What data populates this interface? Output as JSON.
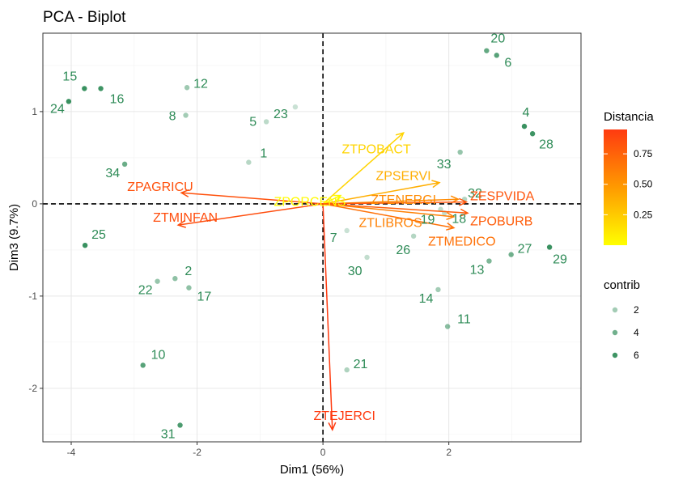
{
  "chart_data": {
    "type": "scatter",
    "title": "PCA - Biplot",
    "xlabel": "Dim1 (56%)",
    "ylabel": "Dim3 (9.7%)",
    "xlim": [
      -4.45,
      4.1
    ],
    "ylim": [
      -2.58,
      1.85
    ],
    "xticks": [
      -4,
      -2,
      0,
      2
    ],
    "yticks": [
      -2,
      -1,
      0,
      1
    ],
    "grid": true,
    "point_color": "#2e8b57",
    "individuals": [
      {
        "label": "1",
        "x": -1.18,
        "y": 0.45,
        "contrib": 1.2
      },
      {
        "label": "2",
        "x": -2.35,
        "y": -0.81,
        "contrib": 2.8
      },
      {
        "label": "4",
        "x": 3.2,
        "y": 0.84,
        "contrib": 6.2
      },
      {
        "label": "5",
        "x": -0.9,
        "y": 0.89,
        "contrib": 1.0
      },
      {
        "label": "6",
        "x": 2.76,
        "y": 1.61,
        "contrib": 5.0
      },
      {
        "label": "7",
        "x": 0.38,
        "y": -0.29,
        "contrib": 0.5
      },
      {
        "label": "8",
        "x": -2.18,
        "y": 0.96,
        "contrib": 2.0
      },
      {
        "label": "10",
        "x": -2.86,
        "y": -1.75,
        "contrib": 5.0
      },
      {
        "label": "11",
        "x": 1.98,
        "y": -1.33,
        "contrib": 3.0
      },
      {
        "label": "12",
        "x": -2.16,
        "y": 1.26,
        "contrib": 2.2
      },
      {
        "label": "13",
        "x": 2.64,
        "y": -0.62,
        "contrib": 3.5
      },
      {
        "label": "14",
        "x": 1.83,
        "y": -0.93,
        "contrib": 2.0
      },
      {
        "label": "15",
        "x": -3.79,
        "y": 1.25,
        "contrib": 6.5
      },
      {
        "label": "16",
        "x": -3.53,
        "y": 1.25,
        "contrib": 6.0
      },
      {
        "label": "17",
        "x": -2.13,
        "y": -0.91,
        "contrib": 2.8
      },
      {
        "label": "18",
        "x": 1.93,
        "y": -0.1,
        "contrib": 0.8
      },
      {
        "label": "19",
        "x": 1.87,
        "y": -0.06,
        "contrib": 0.9
      },
      {
        "label": "20",
        "x": 2.6,
        "y": 1.66,
        "contrib": 4.5
      },
      {
        "label": "21",
        "x": 0.38,
        "y": -1.8,
        "contrib": 1.5
      },
      {
        "label": "22",
        "x": -2.63,
        "y": -0.84,
        "contrib": 2.5
      },
      {
        "label": "23",
        "x": -0.44,
        "y": 1.05,
        "contrib": 0.5
      },
      {
        "label": "24",
        "x": -4.04,
        "y": 1.11,
        "contrib": 6.5
      },
      {
        "label": "25",
        "x": -3.78,
        "y": -0.45,
        "contrib": 6.2
      },
      {
        "label": "26",
        "x": 1.44,
        "y": -0.35,
        "contrib": 1.3
      },
      {
        "label": "27",
        "x": 2.99,
        "y": -0.55,
        "contrib": 4.0
      },
      {
        "label": "28",
        "x": 3.33,
        "y": 0.76,
        "contrib": 6.0
      },
      {
        "label": "29",
        "x": 3.6,
        "y": -0.47,
        "contrib": 6.5
      },
      {
        "label": "30",
        "x": 0.7,
        "y": -0.58,
        "contrib": 0.8
      },
      {
        "label": "31",
        "x": -2.27,
        "y": -2.4,
        "contrib": 5.5
      },
      {
        "label": "32",
        "x": 2.25,
        "y": 0.05,
        "contrib": 1.3
      },
      {
        "label": "33",
        "x": 2.18,
        "y": 0.56,
        "contrib": 2.5
      },
      {
        "label": "34",
        "x": -3.15,
        "y": 0.43,
        "contrib": 4.2
      }
    ],
    "variables": [
      {
        "label": "ZTPOBACT",
        "x": 1.28,
        "y": 0.77,
        "distancia": 0.2
      },
      {
        "label": "ZPSERVI",
        "x": 1.85,
        "y": 0.23,
        "distancia": 0.38
      },
      {
        "label": "ZPORCENS",
        "x": 0.28,
        "y": 0.09,
        "distancia": 0.02
      },
      {
        "label": "ZTENERGI",
        "x": 2.15,
        "y": 0.05,
        "distancia": 0.55
      },
      {
        "label": "ZESPVIDA",
        "x": 2.28,
        "y": 0.02,
        "distancia": 0.82
      },
      {
        "label": "ZTLIBROS",
        "x": 2.08,
        "y": -0.14,
        "distancia": 0.6
      },
      {
        "label": "ZPOBURB",
        "x": 2.3,
        "y": -0.1,
        "distancia": 0.78
      },
      {
        "label": "ZTMEDICO",
        "x": 2.08,
        "y": -0.26,
        "distancia": 0.68
      },
      {
        "label": "ZPAGRICU",
        "x": -2.25,
        "y": 0.12,
        "distancia": 0.84
      },
      {
        "label": "ZTMINFAN",
        "x": -2.3,
        "y": -0.23,
        "distancia": 0.86
      },
      {
        "label": "ZTEJERCI",
        "x": 0.15,
        "y": -2.45,
        "distancia": 0.95
      }
    ],
    "legend": {
      "gradient_title": "Distancia",
      "gradient_ticks": [
        "0.25",
        "0.50",
        "0.75"
      ],
      "gradient_values": [
        0.25,
        0.5,
        0.75
      ],
      "gradient_range": [
        0.0,
        0.95
      ],
      "gradient_colors": [
        "#ffff00",
        "#ff3b10"
      ],
      "size_title": "contrib",
      "size_keys": [
        "2",
        "4",
        "6"
      ],
      "size_values": [
        2,
        4,
        6
      ],
      "placement": "right"
    }
  }
}
